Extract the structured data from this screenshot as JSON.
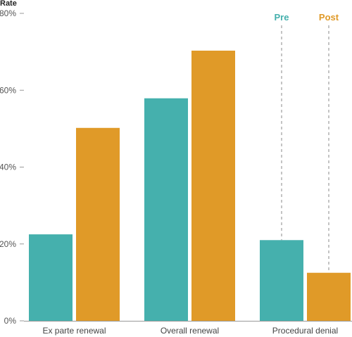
{
  "chart_data": {
    "type": "bar",
    "ylabel": "Rate",
    "categories": [
      "Ex parte renewal",
      "Overall renewal",
      "Procedural denial"
    ],
    "series": [
      {
        "name": "Pre",
        "values": [
          22.5,
          57.9,
          21.0
        ],
        "color": "#45b0ad"
      },
      {
        "name": "Post",
        "values": [
          50.2,
          70.3,
          12.5
        ],
        "color": "#e09a28"
      }
    ],
    "ylim": [
      0,
      80
    ],
    "yticks": [
      0,
      20,
      40,
      60,
      80
    ],
    "ytick_labels": [
      "0%",
      "20%",
      "40%",
      "60%",
      "80%"
    ],
    "legend_placement": "annotated-above-last-group",
    "grid": false
  }
}
